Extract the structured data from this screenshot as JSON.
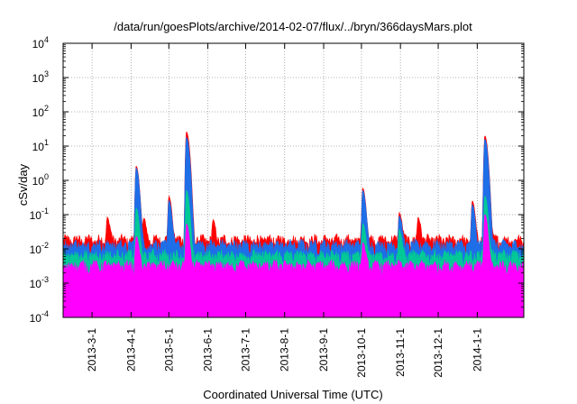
{
  "chart_data": {
    "type": "area",
    "title": "/data/run/goesPlots/archive/2014-02-07/flux/../bryn/366daysMars.plot",
    "xlabel": "Coordinated Universal Time (UTC)",
    "ylabel": "cSv/day",
    "yscale": "log",
    "ylim": [
      0.0001,
      10000
    ],
    "xlim": [
      "2013-02-06",
      "2014-02-07"
    ],
    "grid": true,
    "y_ticks": [
      {
        "base": "10",
        "exp": "-4"
      },
      {
        "base": "10",
        "exp": "-3"
      },
      {
        "base": "10",
        "exp": "-2"
      },
      {
        "base": "10",
        "exp": "-1"
      },
      {
        "base": "10",
        "exp": "0"
      },
      {
        "base": "10",
        "exp": "1"
      },
      {
        "base": "10",
        "exp": "2"
      },
      {
        "base": "10",
        "exp": "3"
      },
      {
        "base": "10",
        "exp": "4"
      }
    ],
    "x_ticks": [
      "2013-3-1",
      "2013-4-1",
      "2013-5-1",
      "2013-6-1",
      "2013-7-1",
      "2013-8-1",
      "2013-9-1",
      "2013-10-1",
      "2013-11-1",
      "2013-12-1",
      "2014-1-1"
    ],
    "series": [
      {
        "color": "#ff0000",
        "baseline": 0.018,
        "spikes": [
          [
            35,
            0.065
          ],
          [
            58,
            2.6
          ],
          [
            64,
            0.055
          ],
          [
            84,
            0.32
          ],
          [
            98,
            26
          ],
          [
            119,
            0.047
          ],
          [
            238,
            0.58
          ],
          [
            267,
            0.1
          ],
          [
            282,
            0.065
          ],
          [
            325,
            0.23
          ],
          [
            335,
            20
          ]
        ]
      },
      {
        "color": "#1e6ee8",
        "baseline": 0.013,
        "spikes": [
          [
            58,
            2.3
          ],
          [
            84,
            0.25
          ],
          [
            98,
            18
          ],
          [
            238,
            0.5
          ],
          [
            267,
            0.08
          ],
          [
            325,
            0.18
          ],
          [
            335,
            16
          ]
        ]
      },
      {
        "color": "#00c896",
        "baseline": 0.0065,
        "spikes": [
          [
            58,
            0.15
          ],
          [
            98,
            0.5
          ],
          [
            238,
            0.05
          ],
          [
            267,
            0.03
          ],
          [
            335,
            0.35
          ]
        ]
      },
      {
        "color": "#ff00ff",
        "baseline": 0.0032,
        "spikes": [
          [
            58,
            0.02
          ],
          [
            98,
            0.05
          ],
          [
            238,
            0.012
          ],
          [
            335,
            0.1
          ]
        ]
      }
    ]
  }
}
